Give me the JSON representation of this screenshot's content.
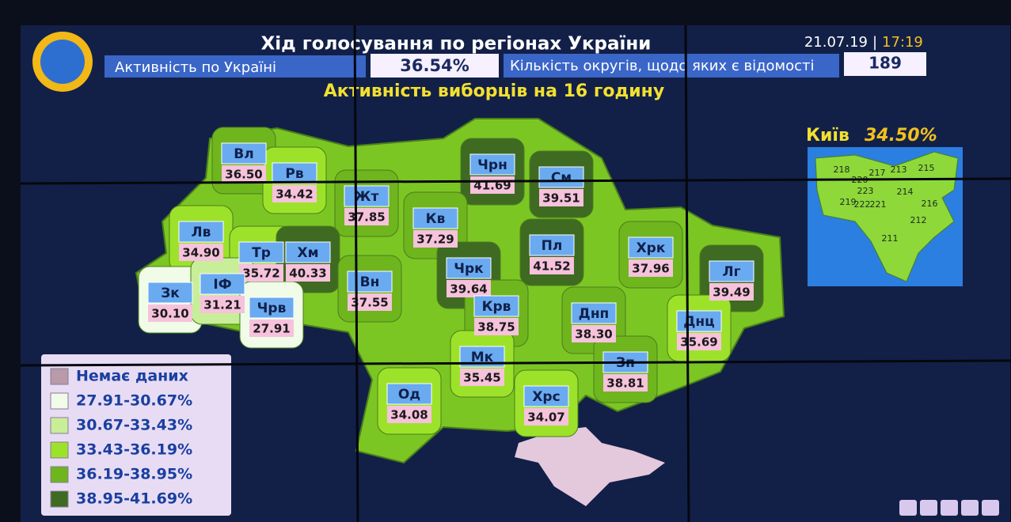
{
  "header": {
    "title": "Хід голосування по регіонах України",
    "date": "21.07.19",
    "separator": "|",
    "time": "17:19",
    "turnout_label": "Активність по Україні",
    "turnout_value": "36.54%",
    "districts_label": "Кількість округів, щодо яких є відомості",
    "districts_value": "189",
    "subtitle": "Активність виборців на 16 годину"
  },
  "regions": [
    {
      "name": "Вл",
      "value": "36.50",
      "color": "#6fb51e"
    },
    {
      "name": "Рв",
      "value": "34.42",
      "color": "#9de22a"
    },
    {
      "name": "Жт",
      "value": "37.85",
      "color": "#6fb51e"
    },
    {
      "name": "Чрн",
      "value": "41.69",
      "color": "#3e6a22"
    },
    {
      "name": "См",
      "value": "39.51",
      "color": "#3e6a22"
    },
    {
      "name": "Лв",
      "value": "34.90",
      "color": "#9de22a"
    },
    {
      "name": "Тр",
      "value": "35.72",
      "color": "#9de22a"
    },
    {
      "name": "Хм",
      "value": "40.33",
      "color": "#3e6a22"
    },
    {
      "name": "Кв",
      "value": "37.29",
      "color": "#6fb51e"
    },
    {
      "name": "Пл",
      "value": "41.52",
      "color": "#3e6a22"
    },
    {
      "name": "Хрк",
      "value": "37.96",
      "color": "#6fb51e"
    },
    {
      "name": "Лг",
      "value": "39.49",
      "color": "#3e6a22"
    },
    {
      "name": "Зк",
      "value": "30.10",
      "color": "#f0fbe8"
    },
    {
      "name": "ІФ",
      "value": "31.21",
      "color": "#c8ee9a"
    },
    {
      "name": "Чрв",
      "value": "27.91",
      "color": "#f0fbe8"
    },
    {
      "name": "Вн",
      "value": "37.55",
      "color": "#6fb51e"
    },
    {
      "name": "Чрк",
      "value": "39.64",
      "color": "#3e6a22"
    },
    {
      "name": "Крв",
      "value": "38.75",
      "color": "#6fb51e"
    },
    {
      "name": "Днп",
      "value": "38.30",
      "color": "#6fb51e"
    },
    {
      "name": "Днц",
      "value": "35.69",
      "color": "#9de22a"
    },
    {
      "name": "Мк",
      "value": "35.45",
      "color": "#9de22a"
    },
    {
      "name": "Зп",
      "value": "38.81",
      "color": "#6fb51e"
    },
    {
      "name": "Од",
      "value": "34.08",
      "color": "#9de22a"
    },
    {
      "name": "Хрс",
      "value": "34.07",
      "color": "#9de22a"
    }
  ],
  "kyiv": {
    "name": "Київ",
    "value": "34.50%",
    "districts": [
      "218",
      "217",
      "213",
      "215",
      "220",
      "223",
      "214",
      "219",
      "222",
      "221",
      "216",
      "212",
      "211"
    ]
  },
  "legend": [
    {
      "label": "Немає даних",
      "color": "#b89aa8"
    },
    {
      "label": "27.91-30.67%",
      "color": "#f0fbe8"
    },
    {
      "label": "30.67-33.43%",
      "color": "#c8ee9a"
    },
    {
      "label": "33.43-36.19%",
      "color": "#9de22a"
    },
    {
      "label": "36.19-38.95%",
      "color": "#6fb51e"
    },
    {
      "label": "38.95-41.69%",
      "color": "#3e6a22"
    }
  ]
}
